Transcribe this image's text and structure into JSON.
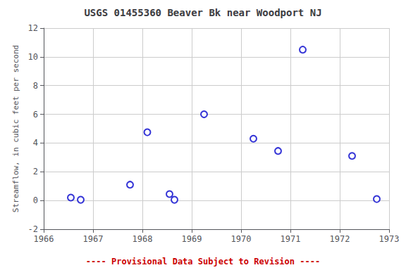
{
  "chart_data": {
    "type": "scatter",
    "title": "USGS 01455360 Beaver Bk near Woodport NJ",
    "ylabel": "Streamflow, in cubic feet per second",
    "x": [
      1966.55,
      1966.75,
      1967.75,
      1968.1,
      1968.55,
      1968.65,
      1969.25,
      1970.25,
      1970.75,
      1971.25,
      1972.25,
      1972.75
    ],
    "values": [
      0.2,
      0.05,
      1.1,
      4.75,
      0.45,
      0.05,
      6.0,
      4.3,
      3.45,
      10.5,
      3.1,
      0.1
    ],
    "color": "#0000CC",
    "marker": "circle",
    "xlim": [
      1966,
      1973
    ],
    "ylim": [
      -2,
      12
    ],
    "xticks": [
      1966,
      1967,
      1968,
      1969,
      1970,
      1971,
      1972,
      1973
    ],
    "yticks": [
      -2,
      0,
      2,
      4,
      6,
      8,
      10,
      12
    ],
    "grid": true,
    "annotations": [
      {
        "text": "---- Provisional Data Subject to Revision ----",
        "color": "#cc0000"
      }
    ]
  }
}
